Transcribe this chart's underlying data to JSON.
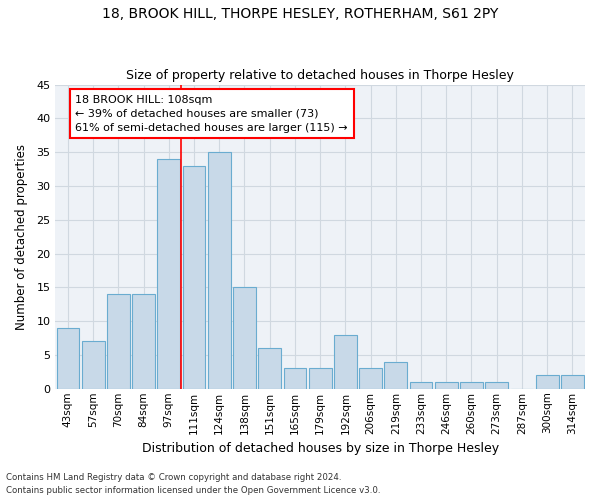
{
  "title1": "18, BROOK HILL, THORPE HESLEY, ROTHERHAM, S61 2PY",
  "title2": "Size of property relative to detached houses in Thorpe Hesley",
  "xlabel": "Distribution of detached houses by size in Thorpe Hesley",
  "ylabel": "Number of detached properties",
  "categories": [
    "43sqm",
    "57sqm",
    "70sqm",
    "84sqm",
    "97sqm",
    "111sqm",
    "124sqm",
    "138sqm",
    "151sqm",
    "165sqm",
    "179sqm",
    "192sqm",
    "206sqm",
    "219sqm",
    "233sqm",
    "246sqm",
    "260sqm",
    "273sqm",
    "287sqm",
    "300sqm",
    "314sqm"
  ],
  "values": [
    9,
    7,
    14,
    14,
    34,
    33,
    35,
    15,
    6,
    3,
    3,
    8,
    3,
    4,
    1,
    1,
    1,
    1,
    0,
    2,
    2
  ],
  "bar_color": "#c8d9e8",
  "bar_edge_color": "#6aacd0",
  "grid_color": "#d0d8e0",
  "background_color": "#eef2f7",
  "vline_color": "red",
  "vline_x_index": 4.5,
  "annotation_text": "18 BROOK HILL: 108sqm\n← 39% of detached houses are smaller (73)\n61% of semi-detached houses are larger (115) →",
  "annotation_box_color": "white",
  "annotation_box_edge_color": "red",
  "footnote1": "Contains HM Land Registry data © Crown copyright and database right 2024.",
  "footnote2": "Contains public sector information licensed under the Open Government Licence v3.0.",
  "ylim": [
    0,
    45
  ],
  "yticks": [
    0,
    5,
    10,
    15,
    20,
    25,
    30,
    35,
    40,
    45
  ]
}
